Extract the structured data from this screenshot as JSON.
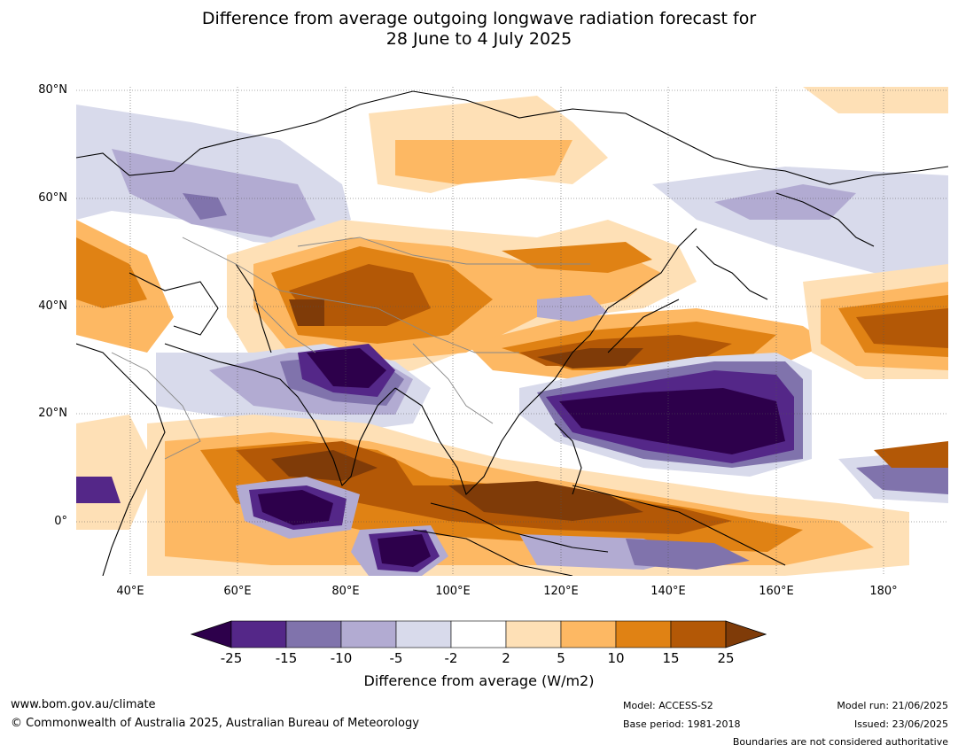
{
  "title": {
    "line1": "Difference from average outgoing longwave radiation forecast for",
    "line2": "28 June to 4 July 2025"
  },
  "map": {
    "lat_labels": [
      "80°N",
      "60°N",
      "40°N",
      "20°N",
      "0°"
    ],
    "lon_labels": [
      "40°E",
      "60°E",
      "80°E",
      "100°E",
      "120°E",
      "140°E",
      "160°E",
      "180°"
    ],
    "lon_range": [
      30,
      192
    ],
    "lat_range": [
      -10,
      80
    ]
  },
  "colorbar": {
    "ticks": [
      "-25",
      "-15",
      "-10",
      "-5",
      "-2",
      "2",
      "5",
      "10",
      "15",
      "25"
    ],
    "colors": [
      "#2d004b",
      "#542788",
      "#8073ac",
      "#b2abd2",
      "#d8daeb",
      "#ffffff",
      "#fee0b6",
      "#fdb863",
      "#e08214",
      "#b35806",
      "#7f3b08"
    ],
    "label": "Difference from average (W/m2)"
  },
  "footer": {
    "website": "www.bom.gov.au/climate",
    "copyright": "© Commonwealth of Australia 2025, Australian Bureau of Meteorology",
    "model": "Model: ACCESS-S2",
    "base_period": "Base period: 1981-2018",
    "model_run": "Model run: 21/06/2025",
    "issued": "Issued: 23/06/2025",
    "disclaimer": "Boundaries are not considered authoritative"
  }
}
